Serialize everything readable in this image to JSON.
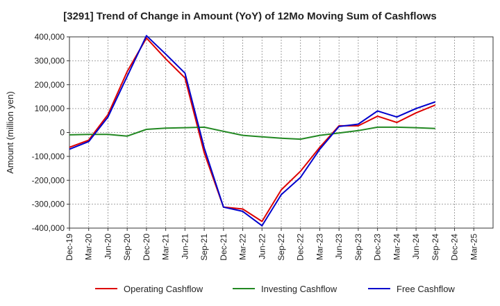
{
  "chart_data": {
    "type": "line",
    "title": "[3291]  Trend of Change in Amount (YoY) of 12Mo Moving Sum of Cashflows",
    "xlabel": "",
    "ylabel": "Amount (million yen)",
    "ylim": [
      -400000,
      400000
    ],
    "yticks": [
      400000,
      300000,
      200000,
      100000,
      0,
      -100000,
      -200000,
      -300000,
      -400000
    ],
    "ytick_labels": [
      "400,000",
      "300,000",
      "200,000",
      "100,000",
      "0",
      "-100,000",
      "-200,000",
      "-300,000",
      "-400,000"
    ],
    "grid": true,
    "legend_position": "bottom",
    "categories": [
      "Dec-19",
      "Mar-20",
      "Jun-20",
      "Sep-20",
      "Dec-20",
      "Mar-21",
      "Jun-21",
      "Sep-21",
      "Dec-21",
      "Mar-22",
      "Jun-22",
      "Sep-22",
      "Dec-22",
      "Mar-23",
      "Jun-23",
      "Sep-23",
      "Dec-23",
      "Mar-24",
      "Jun-24",
      "Sep-24",
      "Dec-24",
      "Mar-25"
    ],
    "series": [
      {
        "name": "Operating Cashflow",
        "color": "#dd0000",
        "values": [
          -62000,
          -32000,
          75000,
          255000,
          395000,
          308000,
          228000,
          -85000,
          -312000,
          -320000,
          -372000,
          -240000,
          -162000,
          -62000,
          28000,
          28000,
          68000,
          42000,
          82000,
          115000,
          null,
          null
        ]
      },
      {
        "name": "Investing Cashflow",
        "color": "#228822",
        "values": [
          -10000,
          -8000,
          -8000,
          -15000,
          13000,
          18000,
          20000,
          22000,
          5000,
          -12000,
          -18000,
          -24000,
          -28000,
          -12000,
          -2000,
          8000,
          22000,
          22000,
          20000,
          17000,
          null,
          null
        ]
      },
      {
        "name": "Free Cashflow",
        "color": "#0000cc",
        "values": [
          -70000,
          -38000,
          65000,
          235000,
          405000,
          328000,
          248000,
          -65000,
          -312000,
          -330000,
          -390000,
          -260000,
          -188000,
          -70000,
          25000,
          35000,
          90000,
          65000,
          100000,
          128000,
          null,
          null
        ]
      }
    ]
  }
}
